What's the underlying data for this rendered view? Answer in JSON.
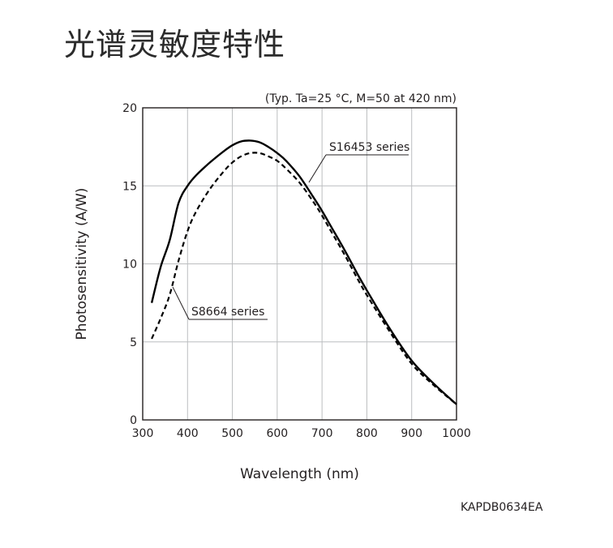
{
  "page_title": "光谱灵敏度特性",
  "doc_code": "KAPDB0634EA",
  "chart_data": {
    "type": "line",
    "title": "",
    "subtitle": "(Typ. Ta=25 °C, M=50 at 420 nm)",
    "xlabel": "Wavelength (nm)",
    "ylabel": "Photosensitivity (A/W)",
    "xlim": [
      300,
      1000
    ],
    "ylim": [
      0,
      20
    ],
    "x_ticks": [
      "300",
      "400",
      "500",
      "600",
      "700",
      "800",
      "900",
      "1000"
    ],
    "y_ticks": [
      "0",
      "5",
      "10",
      "15",
      "20"
    ],
    "grid": true,
    "series": [
      {
        "name": "S16453 series",
        "style": "solid",
        "x": [
          320,
          340,
          360,
          380,
          400,
          420,
          450,
          480,
          500,
          520,
          540,
          560,
          580,
          600,
          620,
          650,
          680,
          700,
          720,
          750,
          780,
          800,
          850,
          900,
          950,
          1000
        ],
        "y": [
          7.5,
          9.8,
          11.5,
          13.9,
          15.0,
          15.7,
          16.5,
          17.2,
          17.6,
          17.85,
          17.9,
          17.8,
          17.5,
          17.1,
          16.6,
          15.6,
          14.3,
          13.4,
          12.4,
          10.9,
          9.3,
          8.3,
          5.9,
          3.8,
          2.3,
          1.0
        ]
      },
      {
        "name": "S8664 series",
        "style": "dashed",
        "x": [
          320,
          340,
          360,
          380,
          400,
          420,
          450,
          480,
          500,
          520,
          540,
          560,
          580,
          600,
          620,
          650,
          680,
          700,
          720,
          750,
          780,
          800,
          850,
          900,
          950,
          1000
        ],
        "y": [
          5.2,
          6.5,
          8.0,
          10.2,
          12.1,
          13.4,
          14.8,
          15.9,
          16.5,
          16.9,
          17.1,
          17.1,
          16.9,
          16.6,
          16.1,
          15.2,
          14.0,
          13.1,
          12.1,
          10.6,
          9.0,
          8.0,
          5.7,
          3.6,
          2.2,
          1.0
        ]
      }
    ]
  }
}
